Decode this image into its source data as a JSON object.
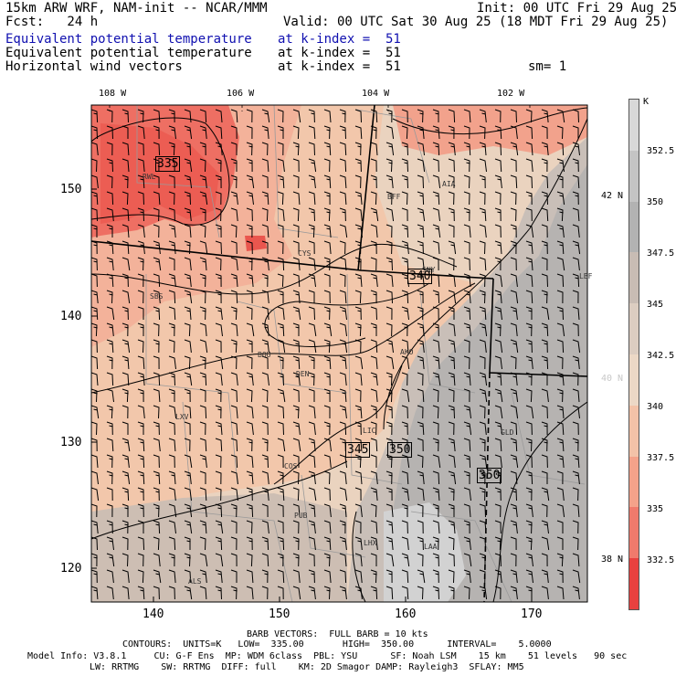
{
  "header": {
    "left_title": "15km ARW WRF, NAM-init -- NCAR/MMM",
    "init_line": "Init: 00 UTC Fri 29 Aug 25",
    "fcst": "Fcst:   24 h",
    "valid_line": "Valid: 00 UTC Sat 30 Aug 25 (18 MDT Fri 29 Aug 25)",
    "fields": [
      {
        "name": "Equivalent potential temperature",
        "level": "at k-index =  51",
        "color": "#1010b0"
      },
      {
        "name": "Equivalent potential temperature",
        "level": "at k-index =  51",
        "color": "#000000"
      },
      {
        "name": "Horizontal wind vectors",
        "level": "at k-index =  51",
        "extra": "sm= 1",
        "color": "#000000"
      }
    ]
  },
  "map": {
    "top_lon_labels": [
      "108 W",
      "106 W",
      "104 W",
      "102 W"
    ],
    "left_y_ticks": [
      "150",
      "140",
      "130",
      "120"
    ],
    "bottom_x_ticks": [
      "140",
      "150",
      "160",
      "170"
    ],
    "right_lat_labels": [
      "42 N",
      "40 N",
      "38 N"
    ],
    "station_labels": [
      "RWL",
      "BFF",
      "AIA",
      "CYS",
      "SNY",
      "SBS",
      "LBF",
      "BOU",
      "AKO",
      "DEN",
      "LXV",
      "LIC",
      "GLD",
      "COS",
      "PUB",
      "LHX",
      "LAA",
      "ALS"
    ],
    "contour_labels": [
      "335",
      "340",
      "345",
      "350",
      "350"
    ],
    "colors": {
      "warm_red": "#ee6a5e",
      "mid_red": "#f4a48c",
      "peach": "#f2c4a8",
      "tan": "#e9d3c0",
      "grey_tan": "#c9bcb4",
      "grey": "#b1b1b1",
      "light_grey": "#d0d0d0"
    }
  },
  "colorbar": {
    "unit": "K",
    "levels": [
      "352.5",
      "350",
      "347.5",
      "345",
      "342.5",
      "340",
      "337.5",
      "335",
      "332.5"
    ],
    "colors": [
      "#d8d8d8",
      "#c4c4c4",
      "#b2b2b2",
      "#c8bcb4",
      "#dccdc1",
      "#ecd8c6",
      "#f3c2a8",
      "#f4a28a",
      "#f07a6c",
      "#e8413f"
    ]
  },
  "footer": {
    "barb_line": "BARB VECTORS:  FULL BARB = 10 kts",
    "contours_line": "CONTOURS:  UNITS=K   LOW=  335.00       HIGH=  350.00      INTERVAL=    5.0000",
    "model_line1": "Model Info: V3.8.1     CU: G-F Ens  MP: WDM 6class  PBL: YSU      SF: Noah LSM    15 km    51 levels   90 sec",
    "model_line2": "LW: RRTMG    SW: RRTMG  DIFF: full    KM: 2D Smagor DAMP: Rayleigh3  SFLAY: MM5"
  }
}
